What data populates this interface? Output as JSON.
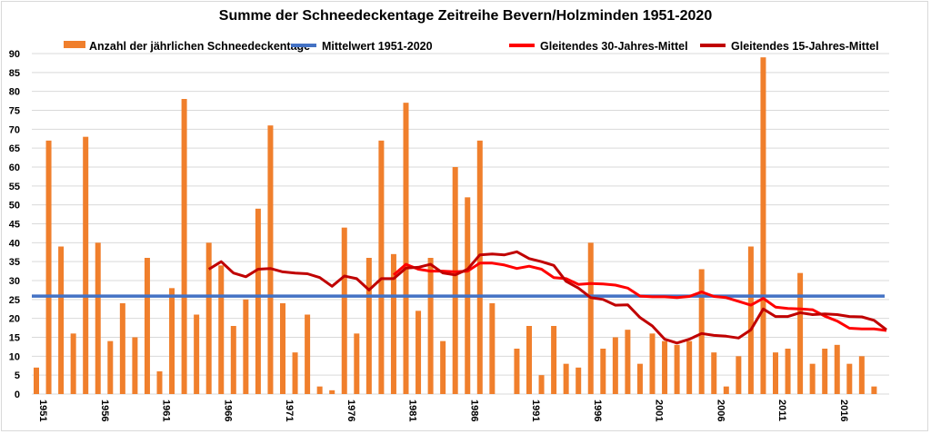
{
  "chart_data": {
    "type": "bar+line",
    "title": "Summe der Schneedeckentage Zeitreihe Bevern/Holzminden 1951-2020",
    "xlabel": "",
    "ylabel": "",
    "ylim": [
      0,
      90
    ],
    "yticks": [
      0,
      5,
      10,
      15,
      20,
      25,
      30,
      35,
      40,
      45,
      50,
      55,
      60,
      65,
      70,
      75,
      80,
      85,
      90
    ],
    "xtick_labels": [
      "1951",
      "1956",
      "1961",
      "1966",
      "1971",
      "1976",
      "1981",
      "1986",
      "1991",
      "1996",
      "2001",
      "2006",
      "2011",
      "2016"
    ],
    "grid": true,
    "legend": "top",
    "years": [
      1951,
      1952,
      1953,
      1954,
      1955,
      1956,
      1957,
      1958,
      1959,
      1960,
      1961,
      1962,
      1963,
      1964,
      1965,
      1966,
      1967,
      1968,
      1969,
      1970,
      1971,
      1972,
      1973,
      1974,
      1975,
      1976,
      1977,
      1978,
      1979,
      1980,
      1981,
      1982,
      1983,
      1984,
      1985,
      1986,
      1987,
      1988,
      1989,
      1990,
      1991,
      1992,
      1993,
      1994,
      1995,
      1996,
      1997,
      1998,
      1999,
      2000,
      2001,
      2002,
      2003,
      2004,
      2005,
      2006,
      2007,
      2008,
      2009,
      2010,
      2011,
      2012,
      2013,
      2014,
      2015,
      2016,
      2017,
      2018,
      2019,
      2020
    ],
    "series": [
      {
        "name": "Anzahl der jährlichen Schneedeckentage",
        "kind": "bar",
        "color": "#f07f2c",
        "values": [
          7,
          67,
          39,
          16,
          68,
          40,
          14,
          24,
          15,
          36,
          6,
          28,
          78,
          21,
          40,
          34,
          18,
          25,
          49,
          71,
          24,
          11,
          21,
          2,
          1,
          44,
          16,
          36,
          67,
          37,
          77,
          22,
          36,
          14,
          60,
          52,
          67,
          24,
          0,
          12,
          18,
          5,
          18,
          8,
          7,
          40,
          12,
          15,
          17,
          8,
          16,
          14,
          13,
          14,
          33,
          11,
          2,
          10,
          39,
          89,
          11,
          12,
          32,
          8,
          12,
          13,
          8,
          10,
          2,
          0
        ]
      },
      {
        "name": "Mittelwert 1951-2020",
        "kind": "line",
        "color": "#4472c4",
        "values_const": 25.9
      },
      {
        "name": "Gleitendes 30-Jahres-Mittel",
        "kind": "line",
        "color": "#ff0000",
        "start_year": 1980,
        "values": [
          31.5,
          34.3,
          33,
          32.5,
          32.5,
          32.3,
          32.5,
          34.6,
          34.6,
          34.1,
          33.2,
          33.8,
          33,
          30.8,
          30.5,
          29,
          29.2,
          29.1,
          28.8,
          28,
          25.9,
          25.7,
          25.7,
          25.5,
          25.8,
          27,
          25.8,
          25.5,
          24.5,
          23.5,
          25.3,
          23,
          22.6,
          22.5,
          22.3,
          20.6,
          19.3,
          17.4,
          17.2,
          17.2,
          16.8
        ]
      },
      {
        "name": "Gleitendes 15-Jahres-Mittel",
        "kind": "line",
        "color": "#c00000",
        "start_year": 1965,
        "values": [
          33,
          35,
          32,
          31,
          33,
          33.2,
          32.3,
          32,
          31.8,
          30.8,
          28.5,
          31.2,
          30.5,
          27.5,
          30.5,
          30.5,
          33.3,
          33.5,
          34.3,
          32,
          31.5,
          33,
          36.8,
          37,
          36.8,
          37.6,
          35.8,
          35,
          34,
          29.8,
          28,
          25.5,
          25,
          23.5,
          23.6,
          20.2,
          18,
          14.5,
          13.5,
          14.5,
          16,
          15.5,
          15.3,
          14.8,
          17,
          22.5,
          20.5,
          20.5,
          21.5,
          21,
          21.2,
          21,
          20.5,
          20.4,
          19.5,
          17
        ]
      }
    ]
  }
}
